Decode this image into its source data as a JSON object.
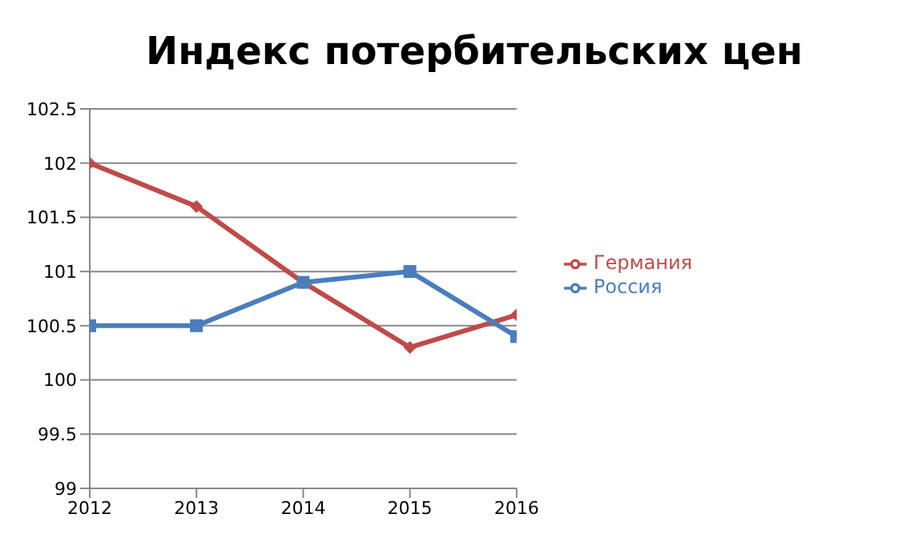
{
  "chart_data": {
    "type": "line",
    "title": "Индекс потербительских цен",
    "x": [
      2012,
      2013,
      2014,
      2015,
      2016
    ],
    "xlim": [
      2012,
      2016
    ],
    "xticks": [
      2012,
      2013,
      2014,
      2015,
      2016
    ],
    "ylim": [
      99,
      102.5
    ],
    "yticks": [
      99,
      99.5,
      100,
      100.5,
      101,
      101.5,
      102,
      102.5
    ],
    "grid": "y",
    "legend": "right",
    "line_style": "solid",
    "series": [
      {
        "name": "Россия",
        "color": "#4a7ebb",
        "values": [
          100.5,
          100.5,
          100.9,
          101.0,
          100.4
        ],
        "marker": "square"
      },
      {
        "name": "Германия",
        "color": "#be4b48",
        "values": [
          102.0,
          101.6,
          100.9,
          100.3,
          100.6
        ],
        "marker": "diamond"
      }
    ]
  }
}
